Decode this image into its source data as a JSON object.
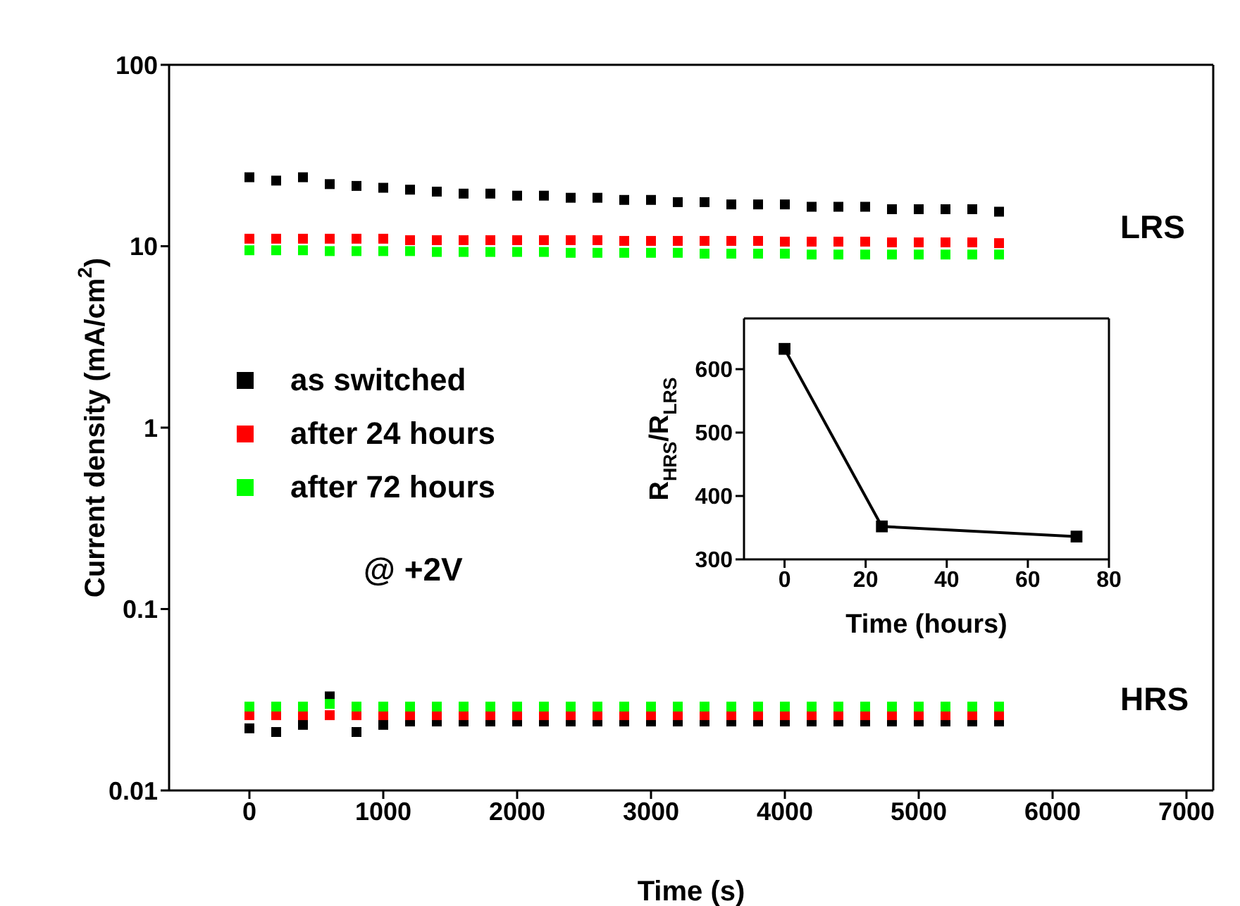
{
  "chart_data": [
    {
      "type": "scatter",
      "xlabel": "Time (s)",
      "ylabel": "Current density (mA/cm$^{2}$)",
      "log": "y",
      "xlim": [
        -600,
        7200
      ],
      "xticks": [
        0,
        1000,
        2000,
        3000,
        4000,
        5000,
        6000,
        7000
      ],
      "ylim": [
        0.01,
        100
      ],
      "yticks": [
        0.01,
        0.1,
        1,
        10,
        100
      ],
      "grid": false,
      "legend": "left",
      "marker": "square",
      "x": [
        0,
        200,
        400,
        600,
        800,
        1000,
        1200,
        1400,
        1600,
        1800,
        2000,
        2200,
        2400,
        2600,
        2800,
        3000,
        3200,
        3400,
        3600,
        3800,
        4000,
        4200,
        4400,
        4600,
        4800,
        5000,
        5200,
        5400,
        5600
      ],
      "annotations": [
        "LRS",
        "HRS",
        "@ +2V"
      ],
      "series": [
        {
          "name": "as switched",
          "color": "#000000",
          "values": [
            24,
            23,
            24,
            22,
            21.5,
            21,
            20.5,
            20,
            19.5,
            19.5,
            19,
            19,
            18.5,
            18.5,
            18,
            18,
            17.5,
            17.5,
            17,
            17,
            17,
            16.5,
            16.5,
            16.5,
            16,
            16,
            16,
            16,
            15.5
          ]
        },
        {
          "name": "after 24 hours",
          "color": "#ff0000",
          "values": [
            11,
            11,
            11,
            11,
            11,
            11,
            10.8,
            10.8,
            10.8,
            10.8,
            10.8,
            10.8,
            10.8,
            10.8,
            10.7,
            10.7,
            10.7,
            10.7,
            10.7,
            10.7,
            10.6,
            10.6,
            10.6,
            10.6,
            10.5,
            10.5,
            10.5,
            10.5,
            10.4
          ]
        },
        {
          "name": "after 72 hours",
          "color": "#00ff00",
          "values": [
            9.5,
            9.5,
            9.5,
            9.4,
            9.4,
            9.4,
            9.4,
            9.3,
            9.3,
            9.3,
            9.3,
            9.3,
            9.2,
            9.2,
            9.2,
            9.2,
            9.2,
            9.1,
            9.1,
            9.1,
            9.1,
            9,
            9,
            9,
            9,
            9,
            9,
            9,
            9
          ]
        },
        {
          "color": "#000000",
          "values": [
            0.022,
            0.021,
            0.023,
            0.033,
            0.021,
            0.023,
            0.024,
            0.024,
            0.024,
            0.024,
            0.024,
            0.024,
            0.024,
            0.024,
            0.024,
            0.024,
            0.024,
            0.024,
            0.024,
            0.024,
            0.024,
            0.024,
            0.024,
            0.024,
            0.024,
            0.024,
            0.024,
            0.024,
            0.024
          ]
        },
        {
          "color": "#ff0000",
          "values": [
            0.026,
            0.026,
            0.026,
            0.026,
            0.026,
            0.026,
            0.026,
            0.026,
            0.026,
            0.026,
            0.026,
            0.026,
            0.026,
            0.026,
            0.026,
            0.026,
            0.026,
            0.026,
            0.026,
            0.026,
            0.026,
            0.026,
            0.026,
            0.026,
            0.026,
            0.026,
            0.026,
            0.026,
            0.026
          ]
        },
        {
          "color": "#00ff00",
          "values": [
            0.029,
            0.029,
            0.029,
            0.03,
            0.029,
            0.029,
            0.029,
            0.029,
            0.029,
            0.029,
            0.029,
            0.029,
            0.029,
            0.029,
            0.029,
            0.029,
            0.029,
            0.029,
            0.029,
            0.029,
            0.029,
            0.029,
            0.029,
            0.029,
            0.029,
            0.029,
            0.029,
            0.029,
            0.029
          ]
        }
      ]
    },
    {
      "type": "line",
      "xlabel": "Time (hours)",
      "ylabel": "R$_{HRS}$/R$_{LRS}$",
      "xlim": [
        -10,
        80
      ],
      "xticks": [
        0,
        20,
        40,
        60,
        80
      ],
      "ylim": [
        300,
        680
      ],
      "yticks": [
        300,
        400,
        500,
        600
      ],
      "grid": false,
      "marker": "square",
      "line_style": "solid",
      "x": [
        0,
        24,
        72
      ],
      "series": [
        {
          "color": "#000000",
          "values": [
            632,
            352,
            336
          ]
        }
      ]
    }
  ]
}
